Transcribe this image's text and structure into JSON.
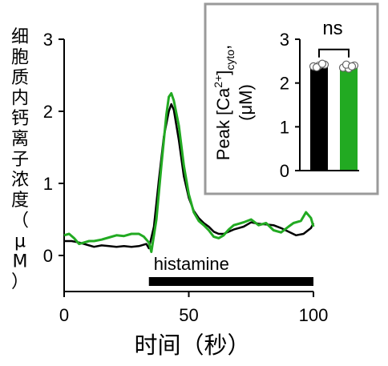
{
  "chart_data": [
    {
      "type": "line",
      "xlabel": "时间（秒）",
      "ylabel": "细胞质内钙离子浓度（μM）",
      "xlim": [
        0,
        100
      ],
      "ylim": [
        -0.5,
        3
      ],
      "xticks": [
        0,
        50,
        100
      ],
      "yticks": [
        0,
        1,
        2,
        3
      ],
      "x_tick_labels": [
        "0",
        "50",
        "100"
      ],
      "y_tick_labels": [
        "0",
        "1",
        "2",
        "3"
      ],
      "annotation": {
        "label": "histamine",
        "x_start": 34,
        "x_end": 100
      },
      "series": [
        {
          "color": "#000000",
          "x": [
            0,
            3,
            6,
            9,
            12,
            15,
            18,
            21,
            24,
            27,
            30,
            33,
            34,
            36,
            38,
            40,
            42,
            43,
            44,
            46,
            48,
            50,
            52,
            54,
            56,
            58,
            60,
            62,
            64,
            66,
            68,
            70,
            72,
            75,
            78,
            81,
            84,
            87,
            90,
            93,
            96,
            99,
            100
          ],
          "y": [
            0.2,
            0.2,
            0.18,
            0.15,
            0.12,
            0.14,
            0.13,
            0.12,
            0.13,
            0.12,
            0.13,
            0.16,
            0.1,
            0.4,
            1.05,
            1.65,
            2.0,
            2.1,
            2.02,
            1.6,
            1.1,
            0.8,
            0.62,
            0.52,
            0.45,
            0.4,
            0.33,
            0.3,
            0.3,
            0.33,
            0.36,
            0.38,
            0.4,
            0.46,
            0.44,
            0.43,
            0.42,
            0.38,
            0.33,
            0.28,
            0.3,
            0.38,
            0.45
          ]
        },
        {
          "color": "#22aa22",
          "x": [
            0,
            2,
            4,
            6,
            8,
            10,
            12,
            15,
            18,
            21,
            24,
            27,
            30,
            32,
            34,
            35,
            37,
            39,
            41,
            42,
            43,
            44,
            46,
            48,
            50,
            52,
            54,
            56,
            58,
            60,
            62,
            64,
            66,
            68,
            70,
            72,
            75,
            78,
            81,
            84,
            87,
            90,
            92,
            95,
            97,
            99,
            100
          ],
          "y": [
            0.28,
            0.3,
            0.24,
            0.16,
            0.18,
            0.2,
            0.2,
            0.22,
            0.25,
            0.28,
            0.27,
            0.3,
            0.3,
            0.26,
            0.18,
            0.05,
            0.5,
            1.25,
            1.95,
            2.2,
            2.25,
            2.15,
            1.8,
            1.25,
            0.85,
            0.6,
            0.48,
            0.42,
            0.35,
            0.26,
            0.24,
            0.28,
            0.36,
            0.42,
            0.44,
            0.46,
            0.5,
            0.42,
            0.45,
            0.35,
            0.32,
            0.4,
            0.45,
            0.48,
            0.6,
            0.52,
            0.4
          ]
        }
      ]
    },
    {
      "type": "bar",
      "ylabel_main": "Peak [Ca",
      "ylabel_sup": "2+",
      "ylabel_tail": "]",
      "ylabel_sub": "cyto",
      "ylabel_comma": ",",
      "ylabel_unit": "(μM)",
      "ylim": [
        0,
        3
      ],
      "yticks": [
        0,
        1,
        2,
        3
      ],
      "y_tick_labels": [
        "0",
        "1",
        "2",
        "3"
      ],
      "significance": "ns",
      "bars": [
        {
          "value": 2.4,
          "color": "#000000",
          "points": [
            2.38,
            2.42,
            2.4,
            2.36,
            2.44
          ]
        },
        {
          "value": 2.37,
          "color": "#22aa22",
          "points": [
            2.35,
            2.4,
            2.33,
            2.42,
            2.38
          ]
        }
      ]
    }
  ]
}
